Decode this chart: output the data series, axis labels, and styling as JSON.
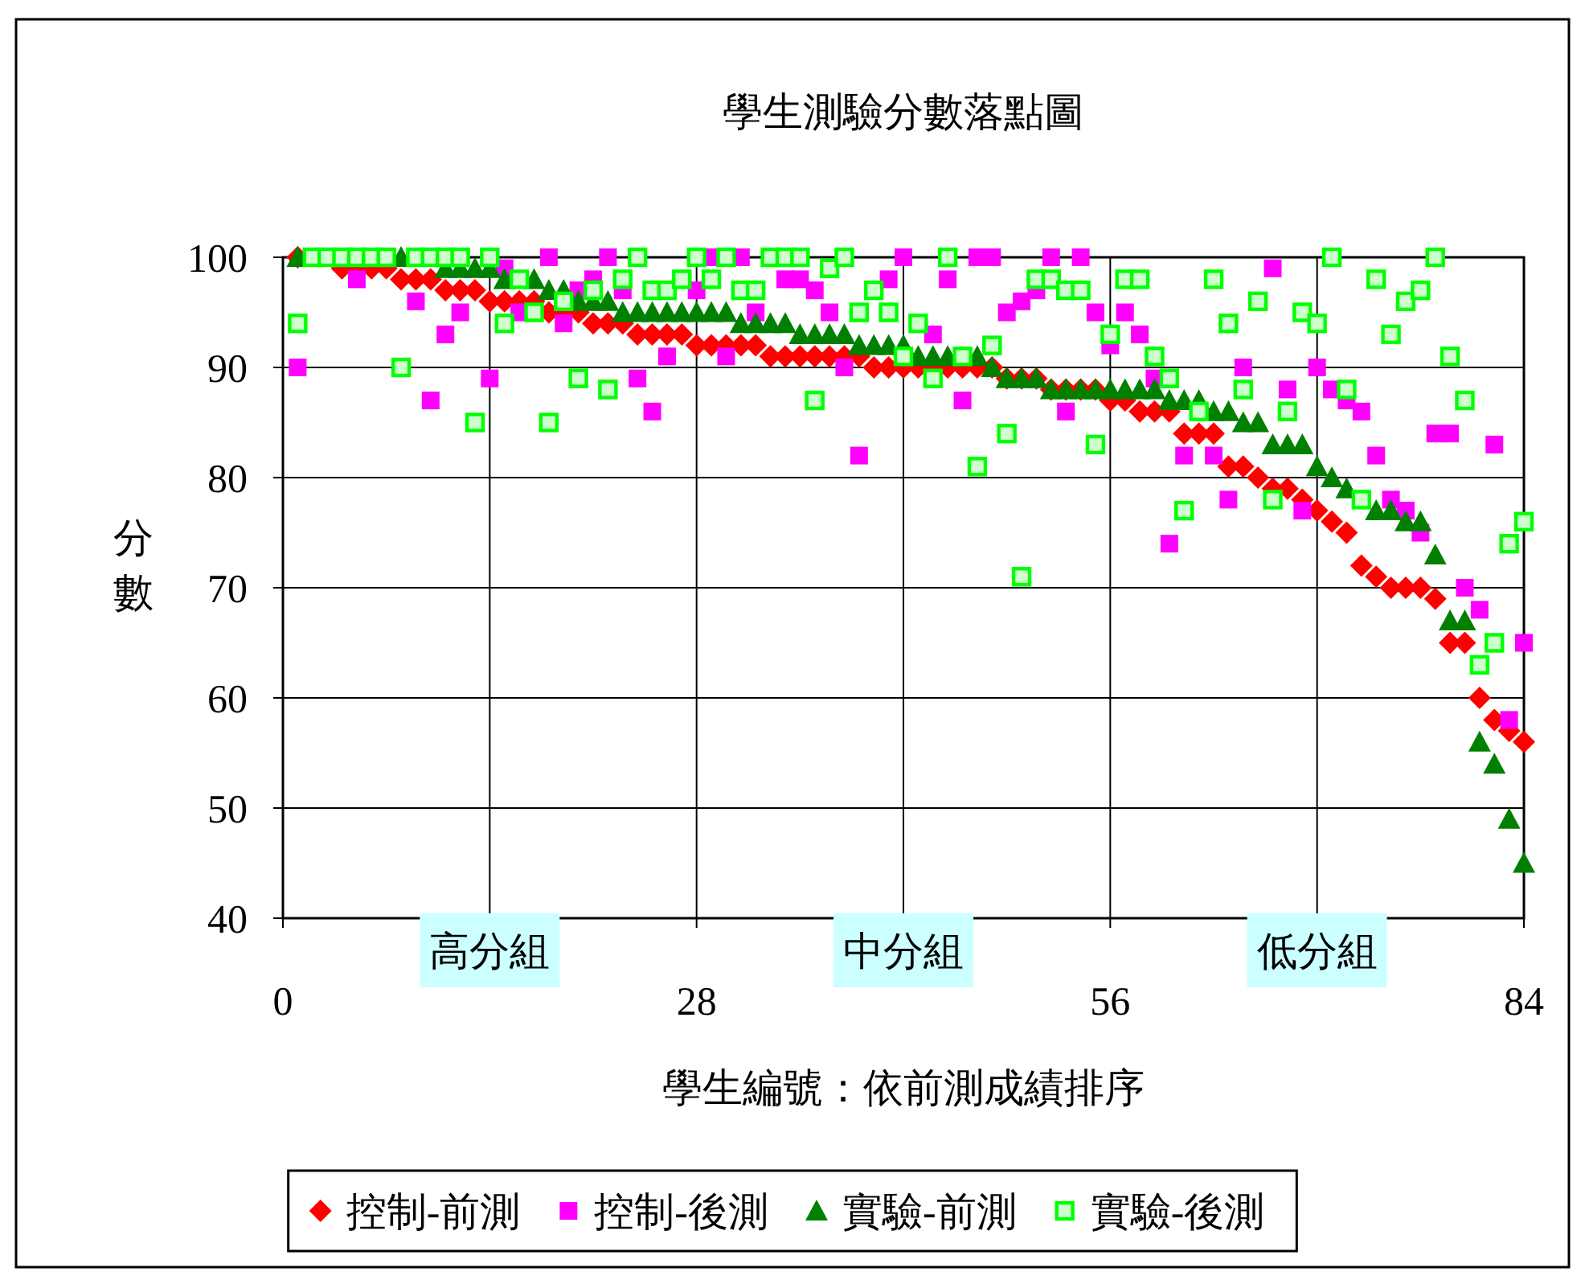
{
  "chart_data": {
    "type": "scatter",
    "title": "學生測驗分數落點圖",
    "xlabel": "學生編號：依前測成績排序",
    "ylabel": "分數",
    "x": [
      1,
      2,
      3,
      4,
      5,
      6,
      7,
      8,
      9,
      10,
      11,
      12,
      13,
      14,
      15,
      16,
      17,
      18,
      19,
      20,
      21,
      22,
      23,
      24,
      25,
      26,
      27,
      28,
      29,
      30,
      31,
      32,
      33,
      34,
      35,
      36,
      37,
      38,
      39,
      40,
      41,
      42,
      43,
      44,
      45,
      46,
      47,
      48,
      49,
      50,
      51,
      52,
      53,
      54,
      55,
      56,
      57,
      58,
      59,
      60,
      61,
      62,
      63,
      64,
      65,
      66,
      67,
      68,
      69,
      70,
      71,
      72,
      73,
      74,
      75,
      76,
      77,
      78,
      79,
      80,
      81,
      82,
      83,
      84
    ],
    "xlim": [
      0,
      84
    ],
    "xticks": [
      0,
      {
        "value": 14,
        "label": null
      },
      28,
      {
        "value": 42,
        "label": null
      },
      56,
      {
        "value": 70,
        "label": null
      },
      84
    ],
    "ylim": [
      40,
      100
    ],
    "yticks": [
      40,
      50,
      60,
      70,
      80,
      90,
      100
    ],
    "grid": true,
    "legend": "bottom",
    "annotations": [
      "高分組",
      "中分組",
      "低分組"
    ],
    "series": [
      {
        "name": "控制-前測",
        "color": "#ff0000",
        "marker": "diamond",
        "values": [
          100,
          null,
          null,
          99,
          99,
          99,
          99,
          98,
          98,
          98,
          97,
          97,
          97,
          96,
          96,
          96,
          96,
          95,
          95,
          95,
          94,
          94,
          94,
          93,
          93,
          93,
          93,
          92,
          92,
          92,
          92,
          92,
          91,
          91,
          91,
          91,
          91,
          91,
          91,
          90,
          90,
          90,
          90,
          90,
          90,
          90,
          90,
          90,
          89,
          89,
          89,
          88,
          88,
          88,
          88,
          87,
          87,
          86,
          86,
          86,
          84,
          84,
          84,
          81,
          81,
          80,
          79,
          79,
          78,
          77,
          76,
          75,
          72,
          71,
          70,
          70,
          70,
          69,
          65,
          65,
          60,
          58,
          57,
          56
        ]
      },
      {
        "name": "控制-後測",
        "color": "#ff00ff",
        "marker": "square",
        "values": [
          90,
          null,
          null,
          null,
          98,
          null,
          null,
          null,
          96,
          87,
          93,
          95,
          null,
          89,
          99,
          95,
          null,
          100,
          94,
          97,
          98,
          100,
          97,
          89,
          86,
          91,
          null,
          97,
          100,
          91,
          100,
          95,
          null,
          98,
          98,
          97,
          95,
          90,
          82,
          null,
          98,
          100,
          null,
          93,
          98,
          87,
          100,
          100,
          95,
          96,
          97,
          100,
          86,
          100,
          95,
          92,
          95,
          93,
          89,
          74,
          82,
          null,
          82,
          78,
          90,
          null,
          99,
          88,
          77,
          90,
          88,
          87,
          86,
          82,
          78,
          77,
          75,
          84,
          84,
          70,
          68,
          83,
          58,
          65
        ]
      },
      {
        "name": "實驗-前測",
        "color": "#008000",
        "marker": "triangle",
        "values": [
          100,
          null,
          null,
          null,
          null,
          null,
          null,
          100,
          null,
          null,
          99,
          99,
          99,
          99,
          98,
          null,
          98,
          97,
          97,
          96,
          96,
          96,
          95,
          95,
          95,
          95,
          95,
          95,
          95,
          95,
          94,
          94,
          94,
          94,
          93,
          93,
          93,
          93,
          92,
          92,
          92,
          92,
          91,
          91,
          91,
          null,
          91,
          90,
          89,
          89,
          89,
          88,
          88,
          88,
          88,
          88,
          88,
          88,
          88,
          87,
          87,
          87,
          86,
          86,
          85,
          85,
          83,
          83,
          83,
          81,
          80,
          79,
          null,
          77,
          77,
          76,
          76,
          73,
          67,
          67,
          56,
          54,
          49,
          45
        ]
      },
      {
        "name": "實驗-後測",
        "color": "#00ff00",
        "marker": "square",
        "values": [
          94,
          100,
          100,
          100,
          100,
          100,
          100,
          90,
          100,
          100,
          100,
          100,
          85,
          100,
          94,
          98,
          95,
          85,
          96,
          89,
          97,
          88,
          98,
          100,
          97,
          97,
          98,
          100,
          98,
          100,
          97,
          97,
          100,
          100,
          100,
          87,
          99,
          100,
          95,
          97,
          95,
          91,
          94,
          89,
          100,
          91,
          81,
          92,
          84,
          71,
          98,
          98,
          97,
          97,
          83,
          93,
          98,
          98,
          91,
          89,
          77,
          86,
          98,
          94,
          88,
          96,
          78,
          86,
          95,
          94,
          100,
          88,
          78,
          98,
          93,
          96,
          97,
          100,
          91,
          87,
          63,
          65,
          74,
          76
        ]
      }
    ]
  }
}
